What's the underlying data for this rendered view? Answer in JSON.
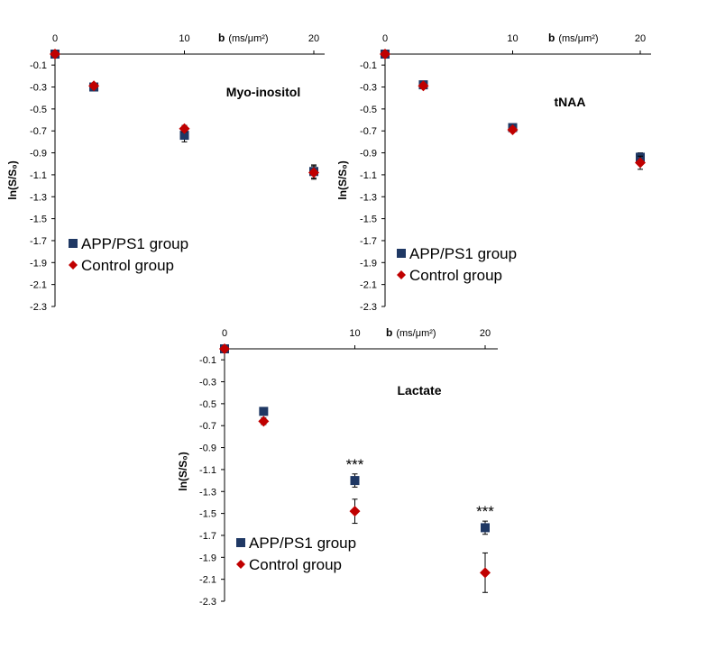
{
  "colors": {
    "app": "#1f3864",
    "control": "#c00000",
    "axis": "#000000",
    "text": "#000000"
  },
  "chart_data": [
    {
      "type": "scatter",
      "title": "Myo-inositol",
      "xlabel_bold": "b",
      "xlabel_unit": "(ms/μm²)",
      "ylabel": "ln(S/S₀)",
      "xticks": [
        0,
        10,
        20
      ],
      "yticks": [
        -0.1,
        -0.3,
        -0.5,
        -0.7,
        -0.9,
        -1.1,
        -1.3,
        -1.5,
        -1.7,
        -1.9,
        -2.1,
        -2.3
      ],
      "ytick_labels": [
        "-0.1",
        "-0.3",
        "-0.5",
        "-0.7",
        "-0.9",
        "-1.1",
        "-1.3",
        "-1.5",
        "-1.7",
        "-1.9",
        "-2.1",
        "-2.3"
      ],
      "xlim": [
        0,
        20
      ],
      "ylim": [
        0,
        -2.3
      ],
      "x": [
        0,
        3,
        10,
        20
      ],
      "series": [
        {
          "name": "APP/PS1 group",
          "marker": "square",
          "values": [
            0,
            -0.3,
            -0.74,
            -1.07
          ],
          "err": [
            0,
            0.02,
            0.06,
            0.06
          ]
        },
        {
          "name": "Control group",
          "marker": "diamond",
          "values": [
            0,
            -0.29,
            -0.68,
            -1.08
          ],
          "err": [
            0,
            0.02,
            0.03,
            0.06
          ]
        }
      ],
      "annotations": []
    },
    {
      "type": "scatter",
      "title": "tNAA",
      "xlabel_bold": "b",
      "xlabel_unit": "(ms/μm²)",
      "ylabel": "ln(S/S₀)",
      "xticks": [
        0,
        10,
        20
      ],
      "yticks": [
        -0.1,
        -0.3,
        -0.5,
        -0.7,
        -0.9,
        -1.1,
        -1.3,
        -1.5,
        -1.7,
        -1.9,
        -2.1,
        -2.3
      ],
      "ytick_labels": [
        "-0.1",
        "-0.3",
        "-0.5",
        "-0.7",
        "-0.9",
        "-1.1",
        "-1.3",
        "-1.5",
        "-1.7",
        "-1.9",
        "-2.1",
        "-2.3"
      ],
      "xlim": [
        0,
        20
      ],
      "ylim": [
        0,
        -2.3
      ],
      "x": [
        0,
        3,
        10,
        20
      ],
      "series": [
        {
          "name": "APP/PS1 group",
          "marker": "square",
          "values": [
            0,
            -0.28,
            -0.67,
            -0.94
          ],
          "err": [
            0,
            0.02,
            0.03,
            0.04
          ]
        },
        {
          "name": "Control group",
          "marker": "diamond",
          "values": [
            0,
            -0.29,
            -0.69,
            -0.99
          ],
          "err": [
            0,
            0.02,
            0.02,
            0.06
          ]
        }
      ],
      "annotations": []
    },
    {
      "type": "scatter",
      "title": "Lactate",
      "xlabel_bold": "b",
      "xlabel_unit": "(ms/μm²)",
      "ylabel": "ln(S/S₀)",
      "xticks": [
        0,
        10,
        20
      ],
      "yticks": [
        -0.1,
        -0.3,
        -0.5,
        -0.7,
        -0.9,
        -1.1,
        -1.3,
        -1.5,
        -1.7,
        -1.9,
        -2.1,
        -2.3
      ],
      "ytick_labels": [
        "-0.1",
        "-0.3",
        "-0.5",
        "-0.7",
        "-0.9",
        "-1.1",
        "-1.3",
        "-1.5",
        "-1.7",
        "-1.9",
        "-2.1",
        "-2.3"
      ],
      "xlim": [
        0,
        20
      ],
      "ylim": [
        0,
        -2.3
      ],
      "x": [
        0,
        3,
        10,
        20
      ],
      "series": [
        {
          "name": "APP/PS1 group",
          "marker": "square",
          "values": [
            0,
            -0.57,
            -1.2,
            -1.63
          ],
          "err": [
            0,
            0.02,
            0.06,
            0.06
          ]
        },
        {
          "name": "Control group",
          "marker": "diamond",
          "values": [
            0,
            -0.66,
            -1.48,
            -2.04
          ],
          "err": [
            0,
            0.03,
            0.11,
            0.18
          ]
        }
      ],
      "annotations": [
        {
          "x": 10,
          "y": -1.05,
          "text": "***"
        },
        {
          "x": 20,
          "y": -1.48,
          "text": "***"
        }
      ]
    }
  ]
}
